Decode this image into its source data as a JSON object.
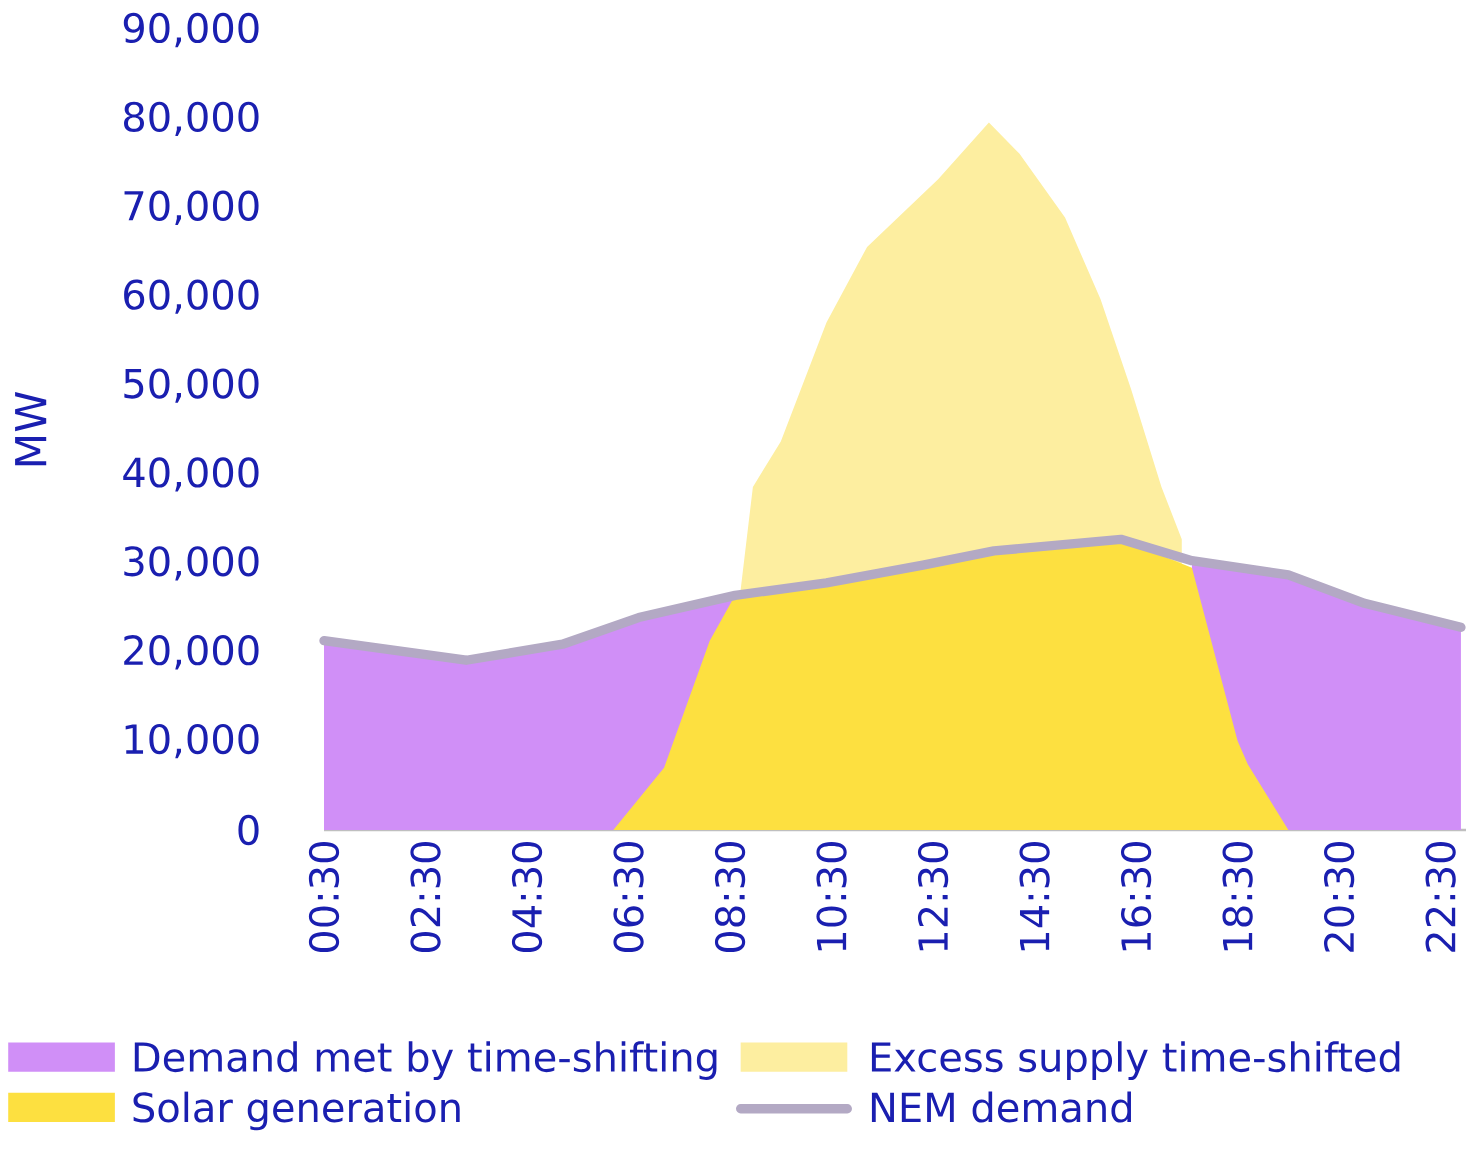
{
  "chart_data": {
    "type": "area",
    "ylabel": "MW",
    "xlim": [
      0.5,
      23
    ],
    "ylim": [
      0,
      90000
    ],
    "xticks": [
      {
        "value": 0.5,
        "label": "00:30"
      },
      {
        "value": 2.5,
        "label": "02:30"
      },
      {
        "value": 4.5,
        "label": "04:30"
      },
      {
        "value": 6.5,
        "label": "06:30"
      },
      {
        "value": 8.5,
        "label": "08:30"
      },
      {
        "value": 10.5,
        "label": "10:30"
      },
      {
        "value": 12.5,
        "label": "12:30"
      },
      {
        "value": 14.5,
        "label": "14:30"
      },
      {
        "value": 16.5,
        "label": "16:30"
      },
      {
        "value": 18.5,
        "label": "18:30"
      },
      {
        "value": 20.5,
        "label": "20:30"
      },
      {
        "value": 22.5,
        "label": "22:30"
      }
    ],
    "yticks": [
      0,
      {
        "value": 10000,
        "label": "10,000"
      },
      {
        "value": 20000,
        "label": "20,000"
      },
      {
        "value": 30000,
        "label": "30,000"
      },
      {
        "value": 40000,
        "label": "40,000"
      },
      {
        "value": 50000,
        "label": "50,000"
      },
      {
        "value": 60000,
        "label": "60,000"
      },
      {
        "value": 70000,
        "label": "70,000"
      },
      {
        "value": 80000,
        "label": "80,000"
      },
      {
        "value": 90000,
        "label": "90,000"
      }
    ],
    "legend": "bottom",
    "grid": false,
    "series": [
      {
        "name": "Demand met by time-shifting",
        "color": "#d08ff7",
        "x": [
          0.5,
          3.3,
          5.2,
          6.7,
          8.6,
          10.4,
          12.3,
          13.7,
          16.2,
          17.6,
          19.5,
          21.0,
          22.9
        ],
        "values": [
          21300,
          19100,
          20900,
          23900,
          26400,
          null,
          null,
          null,
          null,
          30300,
          28700,
          25500,
          22800
        ]
      },
      {
        "name": "Excess supply time-shifted",
        "color": "#fdeea0",
        "x": [
          8.7,
          8.95,
          9.5,
          10.4,
          11.2,
          12.6,
          13.6,
          14.2,
          15.1,
          15.8,
          16.4,
          17.0,
          17.4
        ],
        "values": [
          26600,
          38600,
          43700,
          57100,
          65600,
          73200,
          79600,
          76100,
          68900,
          59700,
          49600,
          38600,
          32700
        ]
      },
      {
        "name": "Solar generation",
        "color": "#fde040",
        "x": [
          6.2,
          7.2,
          8.1,
          8.6,
          10.4,
          12.3,
          13.7,
          16.2,
          17.6,
          18.5,
          18.7,
          19.5
        ],
        "values": [
          0,
          7000,
          21300,
          26400,
          27800,
          29800,
          31400,
          32700,
          29500,
          10000,
          7400,
          0
        ]
      },
      {
        "name": "NEM demand",
        "type": "line",
        "color": "#b3a9c4",
        "x": [
          0.5,
          3.3,
          5.2,
          6.7,
          8.6,
          10.4,
          12.3,
          13.7,
          16.2,
          17.6,
          19.5,
          21.0,
          22.9
        ],
        "values": [
          21300,
          19100,
          20900,
          23900,
          26400,
          27800,
          29800,
          31400,
          32700,
          30300,
          28700,
          25500,
          22800
        ]
      }
    ]
  }
}
